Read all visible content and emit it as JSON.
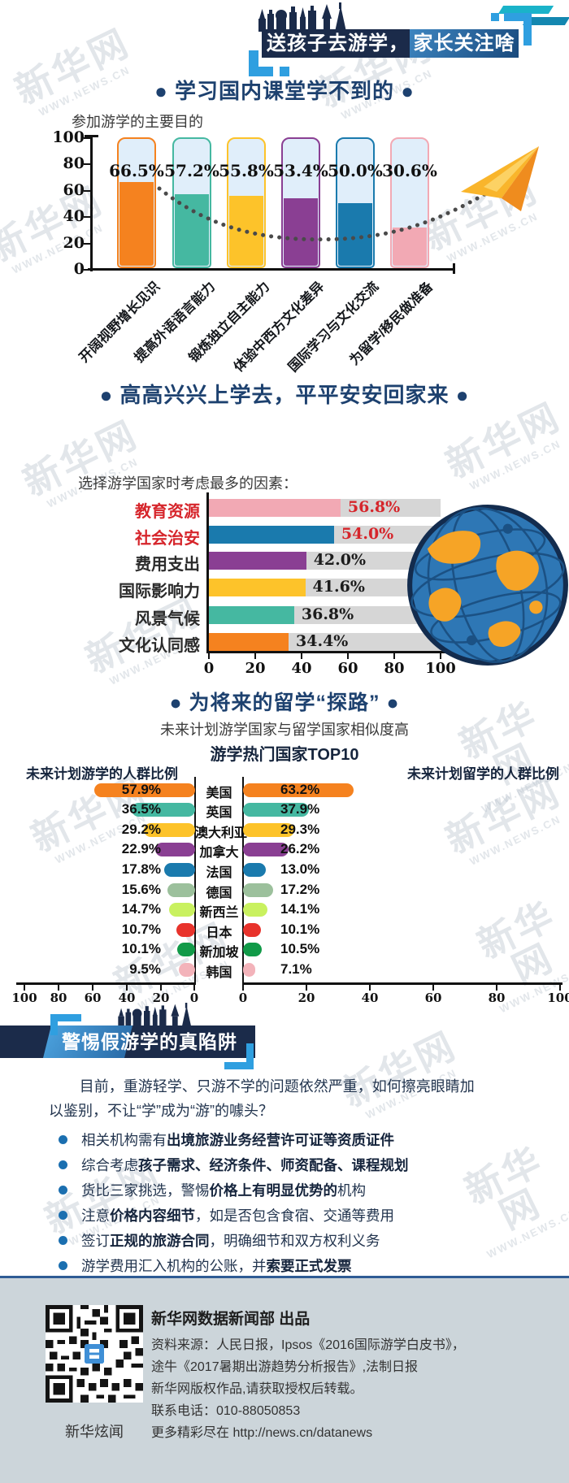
{
  "watermark": {
    "name_text": "新华网",
    "url_text": "WWW.NEWS.CN"
  },
  "banner": {
    "title_part1": "送孩子去游学，",
    "title_part2": "家长关注啥",
    "navy": "#1b2b4a",
    "accent_blue": "#2f9fe0",
    "cyan_strip": "#1ab3c9",
    "blue_strip": "#1387b0"
  },
  "section1": {
    "title": "● 学习国内课堂学不到的 ●",
    "subtitle": "参加游学的主要目的",
    "palette": [
      "#f5821f",
      "#45b8a1",
      "#fdc32a",
      "#8a3f93",
      "#1a7aad",
      "#f2a9b4"
    ],
    "tube_bg": "#e0eefa"
  },
  "section2": {
    "title": "● 高高兴兴上学去，平平安安回家来 ●",
    "subtitle": "选择游学国家时考虑最多的因素：",
    "palette": [
      "#f2a9b4",
      "#1a7aad",
      "#8a3f93",
      "#fdc32a",
      "#45b8a1",
      "#f5821f"
    ],
    "label_colors": [
      "#d6252b",
      "#d6252b",
      "#2b2b2b",
      "#2b2b2b",
      "#2b2b2b",
      "#2b2b2b"
    ],
    "value_colors": [
      "#d6252b",
      "#d6252b",
      "#1c1c1c",
      "#1c1c1c",
      "#1c1c1c",
      "#1c1c1c"
    ],
    "track_color": "#d6d6d6"
  },
  "section3": {
    "title": "● 为将来的留学“探路” ●",
    "subtitle": "未来计划游学国家与留学国家相似度高",
    "center_title": "游学热门国家TOP10",
    "left_header": "未来计划游学的人群比例",
    "right_header": "未来计划留学的人群比例",
    "palette": [
      "#f5821f",
      "#45b8a1",
      "#fdc32a",
      "#8a3f93",
      "#1a7aad",
      "#9cc09c",
      "#c9f15f",
      "#e8332c",
      "#119a48",
      "#f3b3ba"
    ]
  },
  "section4": {
    "banner_title": "警惕假游学的真陷阱",
    "paragraph_lines": [
      "目前，重游轻学、只游不学的问题依然严重，如何擦亮眼睛加",
      "以鉴别，不让“学”成为“游”的噱头？"
    ],
    "bullet_color": "#1b6fb0",
    "bullets": [
      [
        {
          "text": "相关机构需有",
          "bold": false
        },
        {
          "text": "出境旅游业务经营许可证等资质证件",
          "bold": true
        }
      ],
      [
        {
          "text": "综合考虑",
          "bold": false
        },
        {
          "text": "孩子需求、经济条件、师资配备、课程规划",
          "bold": true
        }
      ],
      [
        {
          "text": "货比三家挑选，警惕",
          "bold": false
        },
        {
          "text": "价格上有明显优势的",
          "bold": true
        },
        {
          "text": "机构",
          "bold": false
        }
      ],
      [
        {
          "text": "注意",
          "bold": false
        },
        {
          "text": "价格内容细节",
          "bold": true
        },
        {
          "text": "，如是否包含食宿、交通等费用",
          "bold": false
        }
      ],
      [
        {
          "text": "签订",
          "bold": false
        },
        {
          "text": "正规的旅游合同",
          "bold": true
        },
        {
          "text": "，明确细节和双方权利义务",
          "bold": false
        }
      ],
      [
        {
          "text": "游学费用汇入机构的公账，并",
          "bold": false
        },
        {
          "text": "索要正式发票",
          "bold": true
        }
      ]
    ]
  },
  "footer": {
    "divider_color": "#2e5b94",
    "bg": "#ccd5da",
    "title": "新华网数据新闻部 出品",
    "lines": [
      "资料来源：人民日报，Ipsos《2016国际游学白皮书》，",
      "途牛《2017暑期出游趋势分析报告》,法制日报",
      "新华网版权作品,请获取授权后转载。",
      "联系电话：010-88050853",
      "更多精彩尽在 http://news.cn/datanews"
    ],
    "qr_label": "新华炫闻"
  },
  "chart_data": [
    {
      "type": "bar",
      "title": "参加游学的主要目的",
      "categories": [
        "开阔视野增长见识",
        "提高外语语言能力",
        "锻炼独立自主能力",
        "体验中西方文化差异",
        "国际学习与文化交流",
        "为留学/移民做准备"
      ],
      "values": [
        66.5,
        57.2,
        55.8,
        53.4,
        50.0,
        30.6
      ],
      "unit": "%",
      "xlabel": "",
      "ylabel": "",
      "ylim": [
        0,
        100
      ],
      "yticks": [
        100,
        80,
        60,
        40,
        20,
        0
      ],
      "grid": false
    },
    {
      "type": "bar",
      "orientation": "horizontal",
      "title": "选择游学国家时考虑最多的因素",
      "categories": [
        "教育资源",
        "社会治安",
        "费用支出",
        "国际影响力",
        "风景气候",
        "文化认同感"
      ],
      "values": [
        56.8,
        54.0,
        42.0,
        41.6,
        36.8,
        34.4
      ],
      "unit": "%",
      "xlim": [
        0,
        100
      ],
      "xticks": [
        0,
        20,
        40,
        60,
        80,
        100
      ],
      "grid": false
    },
    {
      "type": "bar",
      "orientation": "tornado",
      "title": "游学热门国家TOP10",
      "categories": [
        "美国",
        "英国",
        "澳大利亚",
        "加拿大",
        "法国",
        "德国",
        "新西兰",
        "日本",
        "新加坡",
        "韩国"
      ],
      "series": [
        {
          "name": "未来计划游学的人群比例",
          "values": [
            57.9,
            36.5,
            29.2,
            22.9,
            17.8,
            15.6,
            14.7,
            10.7,
            10.1,
            9.5
          ]
        },
        {
          "name": "未来计划留学的人群比例",
          "values": [
            63.2,
            37.9,
            29.3,
            26.2,
            13.0,
            17.2,
            14.1,
            10.1,
            10.5,
            7.1
          ]
        }
      ],
      "unit": "%",
      "left_axis_ticks": [
        100,
        80,
        60,
        40,
        20,
        0
      ],
      "right_axis_ticks": [
        0,
        20,
        40,
        60,
        80,
        100
      ],
      "xlim": [
        0,
        100
      ]
    }
  ]
}
